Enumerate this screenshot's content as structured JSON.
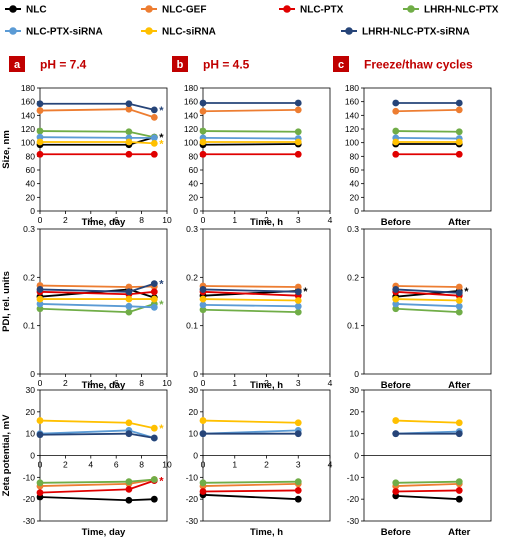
{
  "legend": [
    {
      "name": "NLC",
      "color": "#000000"
    },
    {
      "name": "NLC-GEF",
      "color": "#ed7d31"
    },
    {
      "name": "NLC-PTX",
      "color": "#e00000"
    },
    {
      "name": "LHRH-NLC-PTX",
      "color": "#70ad47"
    },
    {
      "name": "NLC-PTX-siRNA",
      "color": "#5b9bd5"
    },
    {
      "name": "NLC-siRNA",
      "color": "#ffc000"
    },
    {
      "name": "LHRH-NLC-PTX-siRNA",
      "color": "#264478"
    }
  ],
  "panels": [
    {
      "letter": "a",
      "title": "pH = 7.4",
      "xlabel": "Time, day"
    },
    {
      "letter": "b",
      "title": "pH = 4.5",
      "xlabel": "Time, h"
    },
    {
      "letter": "c",
      "title": "Freeze/thaw cycles",
      "xlabel": ""
    }
  ],
  "row_ylabels": [
    "Size, nm",
    "PDI, rel. units",
    "Zeta potential, mV"
  ],
  "chart_data": [
    {
      "type": "line",
      "panel": "a",
      "row": "size",
      "ylabel": "Size, nm",
      "xlabel": "Time, day",
      "x": [
        0,
        7,
        9
      ],
      "xlim": [
        0,
        10
      ],
      "xticks": [
        "0",
        "2",
        "4",
        "6",
        "8",
        "10"
      ],
      "ylim": [
        0,
        180
      ],
      "yticks": [
        "0",
        "20",
        "40",
        "60",
        "80",
        "100",
        "120",
        "140",
        "160",
        "180"
      ],
      "series": [
        {
          "name": "NLC",
          "values": [
            97,
            97,
            108
          ],
          "star": true
        },
        {
          "name": "NLC-GEF",
          "values": [
            147,
            149,
            137
          ]
        },
        {
          "name": "NLC-PTX",
          "values": [
            83,
            83,
            83
          ]
        },
        {
          "name": "LHRH-NLC-PTX",
          "values": [
            117,
            116,
            108
          ]
        },
        {
          "name": "NLC-PTX-siRNA",
          "values": [
            108,
            107,
            107
          ]
        },
        {
          "name": "NLC-siRNA",
          "values": [
            101,
            101,
            99
          ],
          "star": true
        },
        {
          "name": "LHRH-NLC-PTX-siRNA",
          "values": [
            157,
            157,
            148
          ],
          "star": true
        }
      ]
    },
    {
      "type": "line",
      "panel": "b",
      "row": "size",
      "ylabel": "",
      "xlabel": "Time, h",
      "x": [
        0,
        3
      ],
      "xlim": [
        0,
        4
      ],
      "xticks": [
        "0",
        "1",
        "2",
        "3",
        "4"
      ],
      "ylim": [
        0,
        180
      ],
      "yticks": [
        "0",
        "20",
        "40",
        "60",
        "80",
        "100",
        "120",
        "140",
        "160",
        "180"
      ],
      "series": [
        {
          "name": "NLC",
          "values": [
            97,
            98
          ]
        },
        {
          "name": "NLC-GEF",
          "values": [
            146,
            148
          ]
        },
        {
          "name": "NLC-PTX",
          "values": [
            83,
            83
          ]
        },
        {
          "name": "LHRH-NLC-PTX",
          "values": [
            117,
            116
          ]
        },
        {
          "name": "NLC-PTX-siRNA",
          "values": [
            107,
            106
          ]
        },
        {
          "name": "NLC-siRNA",
          "values": [
            101,
            101
          ]
        },
        {
          "name": "LHRH-NLC-PTX-siRNA",
          "values": [
            158,
            158
          ]
        }
      ]
    },
    {
      "type": "line",
      "panel": "c",
      "row": "size",
      "ylabel": "",
      "xlabel": "",
      "x": [
        0,
        1
      ],
      "categories": [
        "Before",
        "After"
      ],
      "ylim": [
        0,
        180
      ],
      "yticks": [
        "0",
        "20",
        "40",
        "60",
        "80",
        "100",
        "120",
        "140",
        "160",
        "180"
      ],
      "series": [
        {
          "name": "NLC",
          "values": [
            98,
            98
          ]
        },
        {
          "name": "NLC-GEF",
          "values": [
            146,
            148
          ]
        },
        {
          "name": "NLC-PTX",
          "values": [
            83,
            83
          ]
        },
        {
          "name": "LHRH-NLC-PTX",
          "values": [
            117,
            116
          ]
        },
        {
          "name": "NLC-PTX-siRNA",
          "values": [
            107,
            106
          ]
        },
        {
          "name": "NLC-siRNA",
          "values": [
            101,
            101
          ]
        },
        {
          "name": "LHRH-NLC-PTX-siRNA",
          "values": [
            158,
            158
          ]
        }
      ]
    },
    {
      "type": "line",
      "panel": "a",
      "row": "pdi",
      "ylabel": "PDI, rel. units",
      "xlabel": "Time, day",
      "x": [
        0,
        7,
        9
      ],
      "xlim": [
        0,
        10
      ],
      "xticks": [
        "0",
        "2",
        "4",
        "6",
        "8",
        "10"
      ],
      "ylim": [
        0,
        0.3
      ],
      "yticks": [
        "0",
        "0.1",
        "0.2",
        "0.3"
      ],
      "series": [
        {
          "name": "NLC",
          "values": [
            0.16,
            0.175,
            0.158
          ]
        },
        {
          "name": "NLC-GEF",
          "values": [
            0.183,
            0.18,
            0.181
          ]
        },
        {
          "name": "NLC-PTX",
          "values": [
            0.17,
            0.165,
            0.17
          ]
        },
        {
          "name": "LHRH-NLC-PTX",
          "values": [
            0.135,
            0.128,
            0.145
          ],
          "star": true
        },
        {
          "name": "NLC-PTX-siRNA",
          "values": [
            0.145,
            0.14,
            0.138
          ]
        },
        {
          "name": "NLC-siRNA",
          "values": [
            0.155,
            0.155,
            0.155
          ]
        },
        {
          "name": "LHRH-NLC-PTX-siRNA",
          "values": [
            0.175,
            0.17,
            0.187
          ],
          "star": true
        }
      ]
    },
    {
      "type": "line",
      "panel": "b",
      "row": "pdi",
      "ylabel": "",
      "xlabel": "Time, h",
      "x": [
        0,
        3
      ],
      "xlim": [
        0,
        4
      ],
      "xticks": [
        "0",
        "1",
        "2",
        "3",
        "4"
      ],
      "ylim": [
        0,
        0.3
      ],
      "yticks": [
        "0",
        "0.1",
        "0.2",
        "0.3"
      ],
      "series": [
        {
          "name": "NLC",
          "values": [
            0.162,
            0.172
          ],
          "star": true
        },
        {
          "name": "NLC-GEF",
          "values": [
            0.182,
            0.18
          ]
        },
        {
          "name": "NLC-PTX",
          "values": [
            0.17,
            0.162
          ]
        },
        {
          "name": "LHRH-NLC-PTX",
          "values": [
            0.133,
            0.128
          ]
        },
        {
          "name": "NLC-PTX-siRNA",
          "values": [
            0.143,
            0.14
          ]
        },
        {
          "name": "NLC-siRNA",
          "values": [
            0.155,
            0.152
          ]
        },
        {
          "name": "LHRH-NLC-PTX-siRNA",
          "values": [
            0.175,
            0.17
          ]
        }
      ]
    },
    {
      "type": "line",
      "panel": "c",
      "row": "pdi",
      "ylabel": "",
      "xlabel": "",
      "x": [
        0,
        1
      ],
      "categories": [
        "Before",
        "After"
      ],
      "ylim": [
        0,
        0.3
      ],
      "yticks": [
        "0",
        "0.1",
        "0.2",
        "0.3"
      ],
      "series": [
        {
          "name": "NLC",
          "values": [
            0.16,
            0.172
          ],
          "star": true
        },
        {
          "name": "NLC-GEF",
          "values": [
            0.182,
            0.18
          ]
        },
        {
          "name": "NLC-PTX",
          "values": [
            0.17,
            0.162
          ]
        },
        {
          "name": "LHRH-NLC-PTX",
          "values": [
            0.135,
            0.128
          ]
        },
        {
          "name": "NLC-PTX-siRNA",
          "values": [
            0.145,
            0.14
          ]
        },
        {
          "name": "NLC-siRNA",
          "values": [
            0.155,
            0.152
          ]
        },
        {
          "name": "LHRH-NLC-PTX-siRNA",
          "values": [
            0.175,
            0.168
          ]
        }
      ]
    },
    {
      "type": "line",
      "panel": "a",
      "row": "zeta",
      "ylabel": "Zeta potential, mV",
      "xlabel": "Time, day",
      "x": [
        0,
        7,
        9
      ],
      "xlim": [
        0,
        10
      ],
      "xticks": [
        "0",
        "2",
        "4",
        "6",
        "8",
        "10"
      ],
      "ylim": [
        -30,
        30
      ],
      "yticks": [
        "-30",
        "-20",
        "-10",
        "0",
        "10",
        "20",
        "30"
      ],
      "series": [
        {
          "name": "NLC",
          "values": [
            -19,
            -20.5,
            -20
          ]
        },
        {
          "name": "NLC-GEF",
          "values": [
            -14,
            -13,
            -11
          ]
        },
        {
          "name": "NLC-PTX",
          "values": [
            -17,
            -15.5,
            -11.5
          ],
          "star": true
        },
        {
          "name": "LHRH-NLC-PTX",
          "values": [
            -12.5,
            -12,
            -11
          ]
        },
        {
          "name": "NLC-PTX-siRNA",
          "values": [
            10,
            11.5,
            8
          ]
        },
        {
          "name": "NLC-siRNA",
          "values": [
            16,
            15,
            12.5
          ],
          "star": true
        },
        {
          "name": "LHRH-NLC-PTX-siRNA",
          "values": [
            9.5,
            10,
            8
          ]
        }
      ]
    },
    {
      "type": "line",
      "panel": "b",
      "row": "zeta",
      "ylabel": "",
      "xlabel": "Time, h",
      "x": [
        0,
        3
      ],
      "xlim": [
        0,
        4
      ],
      "xticks": [
        "0",
        "1",
        "2",
        "3",
        "4"
      ],
      "ylim": [
        -30,
        30
      ],
      "yticks": [
        "-30",
        "-20",
        "-10",
        "0",
        "10",
        "20",
        "30"
      ],
      "series": [
        {
          "name": "NLC",
          "values": [
            -18,
            -20
          ]
        },
        {
          "name": "NLC-GEF",
          "values": [
            -14,
            -13
          ]
        },
        {
          "name": "NLC-PTX",
          "values": [
            -16.5,
            -16
          ]
        },
        {
          "name": "LHRH-NLC-PTX",
          "values": [
            -12.5,
            -12
          ]
        },
        {
          "name": "NLC-PTX-siRNA",
          "values": [
            10,
            11.5
          ]
        },
        {
          "name": "NLC-siRNA",
          "values": [
            16,
            15
          ]
        },
        {
          "name": "LHRH-NLC-PTX-siRNA",
          "values": [
            10,
            10
          ]
        }
      ]
    },
    {
      "type": "line",
      "panel": "c",
      "row": "zeta",
      "ylabel": "",
      "xlabel": "",
      "x": [
        0,
        1
      ],
      "categories": [
        "Before",
        "After"
      ],
      "ylim": [
        -30,
        30
      ],
      "yticks": [
        "-30",
        "-20",
        "-10",
        "0",
        "10",
        "20",
        "30"
      ],
      "series": [
        {
          "name": "NLC",
          "values": [
            -18.5,
            -20
          ]
        },
        {
          "name": "NLC-GEF",
          "values": [
            -14,
            -13
          ]
        },
        {
          "name": "NLC-PTX",
          "values": [
            -16.5,
            -16
          ]
        },
        {
          "name": "LHRH-NLC-PTX",
          "values": [
            -12.5,
            -12
          ]
        },
        {
          "name": "NLC-PTX-siRNA",
          "values": [
            10,
            11
          ]
        },
        {
          "name": "NLC-siRNA",
          "values": [
            16,
            15
          ]
        },
        {
          "name": "LHRH-NLC-PTX-siRNA",
          "values": [
            10,
            10
          ]
        }
      ]
    }
  ],
  "star_symbol": "*"
}
